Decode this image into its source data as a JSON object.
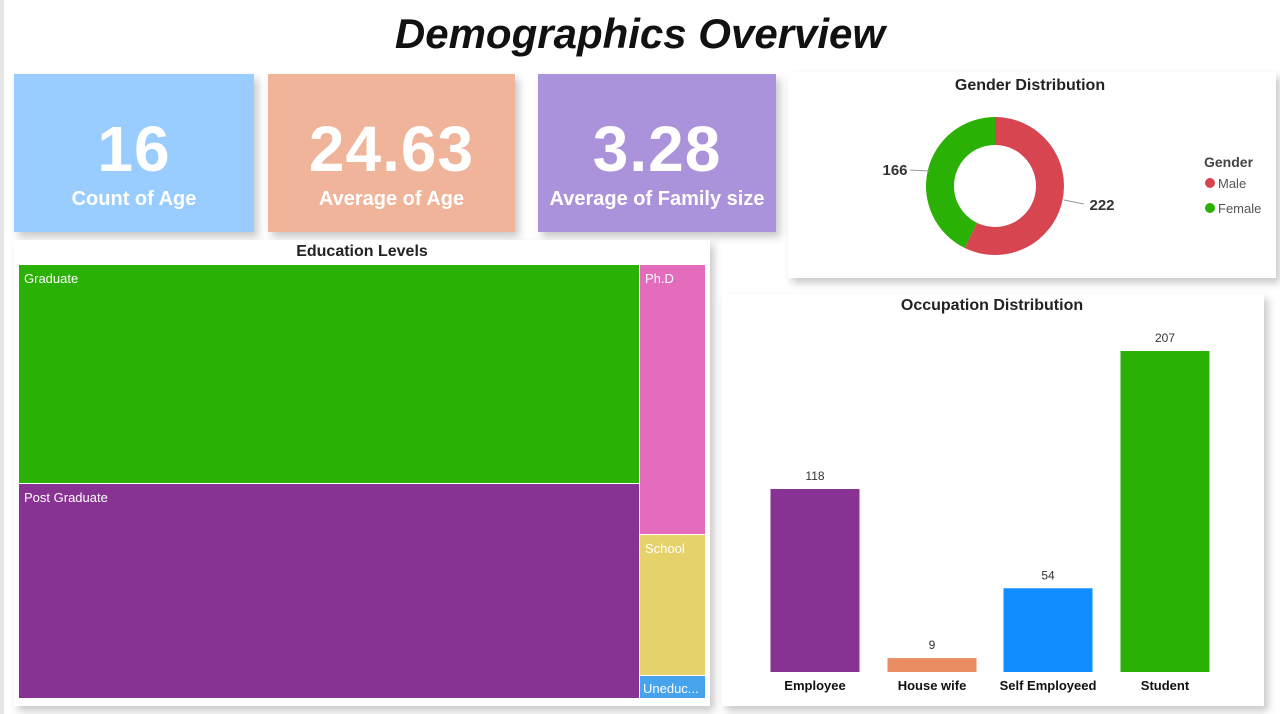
{
  "title": "Demographics Overview",
  "kpis": [
    {
      "value": "16",
      "label": "Count of Age",
      "color": "#99CCFF"
    },
    {
      "value": "24.63",
      "label": "Average of Age",
      "color": "#F0B49A"
    },
    {
      "value": "3.28",
      "label": "Average of Family size",
      "color": "#AB93DB"
    }
  ],
  "chart_data": [
    {
      "type": "treemap",
      "title": "Education Levels",
      "items": [
        {
          "label": "Graduate",
          "color": "#2BB006"
        },
        {
          "label": "Post Graduate",
          "color": "#883393"
        },
        {
          "label": "Ph.D",
          "color": "#E36CBD"
        },
        {
          "label": "School",
          "color": "#E6D26A"
        },
        {
          "label": "Uneduc...",
          "color": "#47A4EC"
        }
      ]
    },
    {
      "type": "pie",
      "title": "Gender Distribution",
      "legend_title": "Gender",
      "legend_position": "right",
      "slices": [
        {
          "label": "Male",
          "value": 222,
          "color": "#D64550"
        },
        {
          "label": "Female",
          "value": 166,
          "color": "#2BB006"
        }
      ]
    },
    {
      "type": "bar",
      "title": "Occupation Distribution",
      "categories": [
        "Employee",
        "House wife",
        "Self Employeed",
        "Student"
      ],
      "values": [
        118,
        9,
        54,
        207
      ],
      "colors": [
        "#883393",
        "#EA8D62",
        "#118DFF",
        "#2BB006"
      ],
      "ylim": [
        0,
        207
      ]
    }
  ]
}
